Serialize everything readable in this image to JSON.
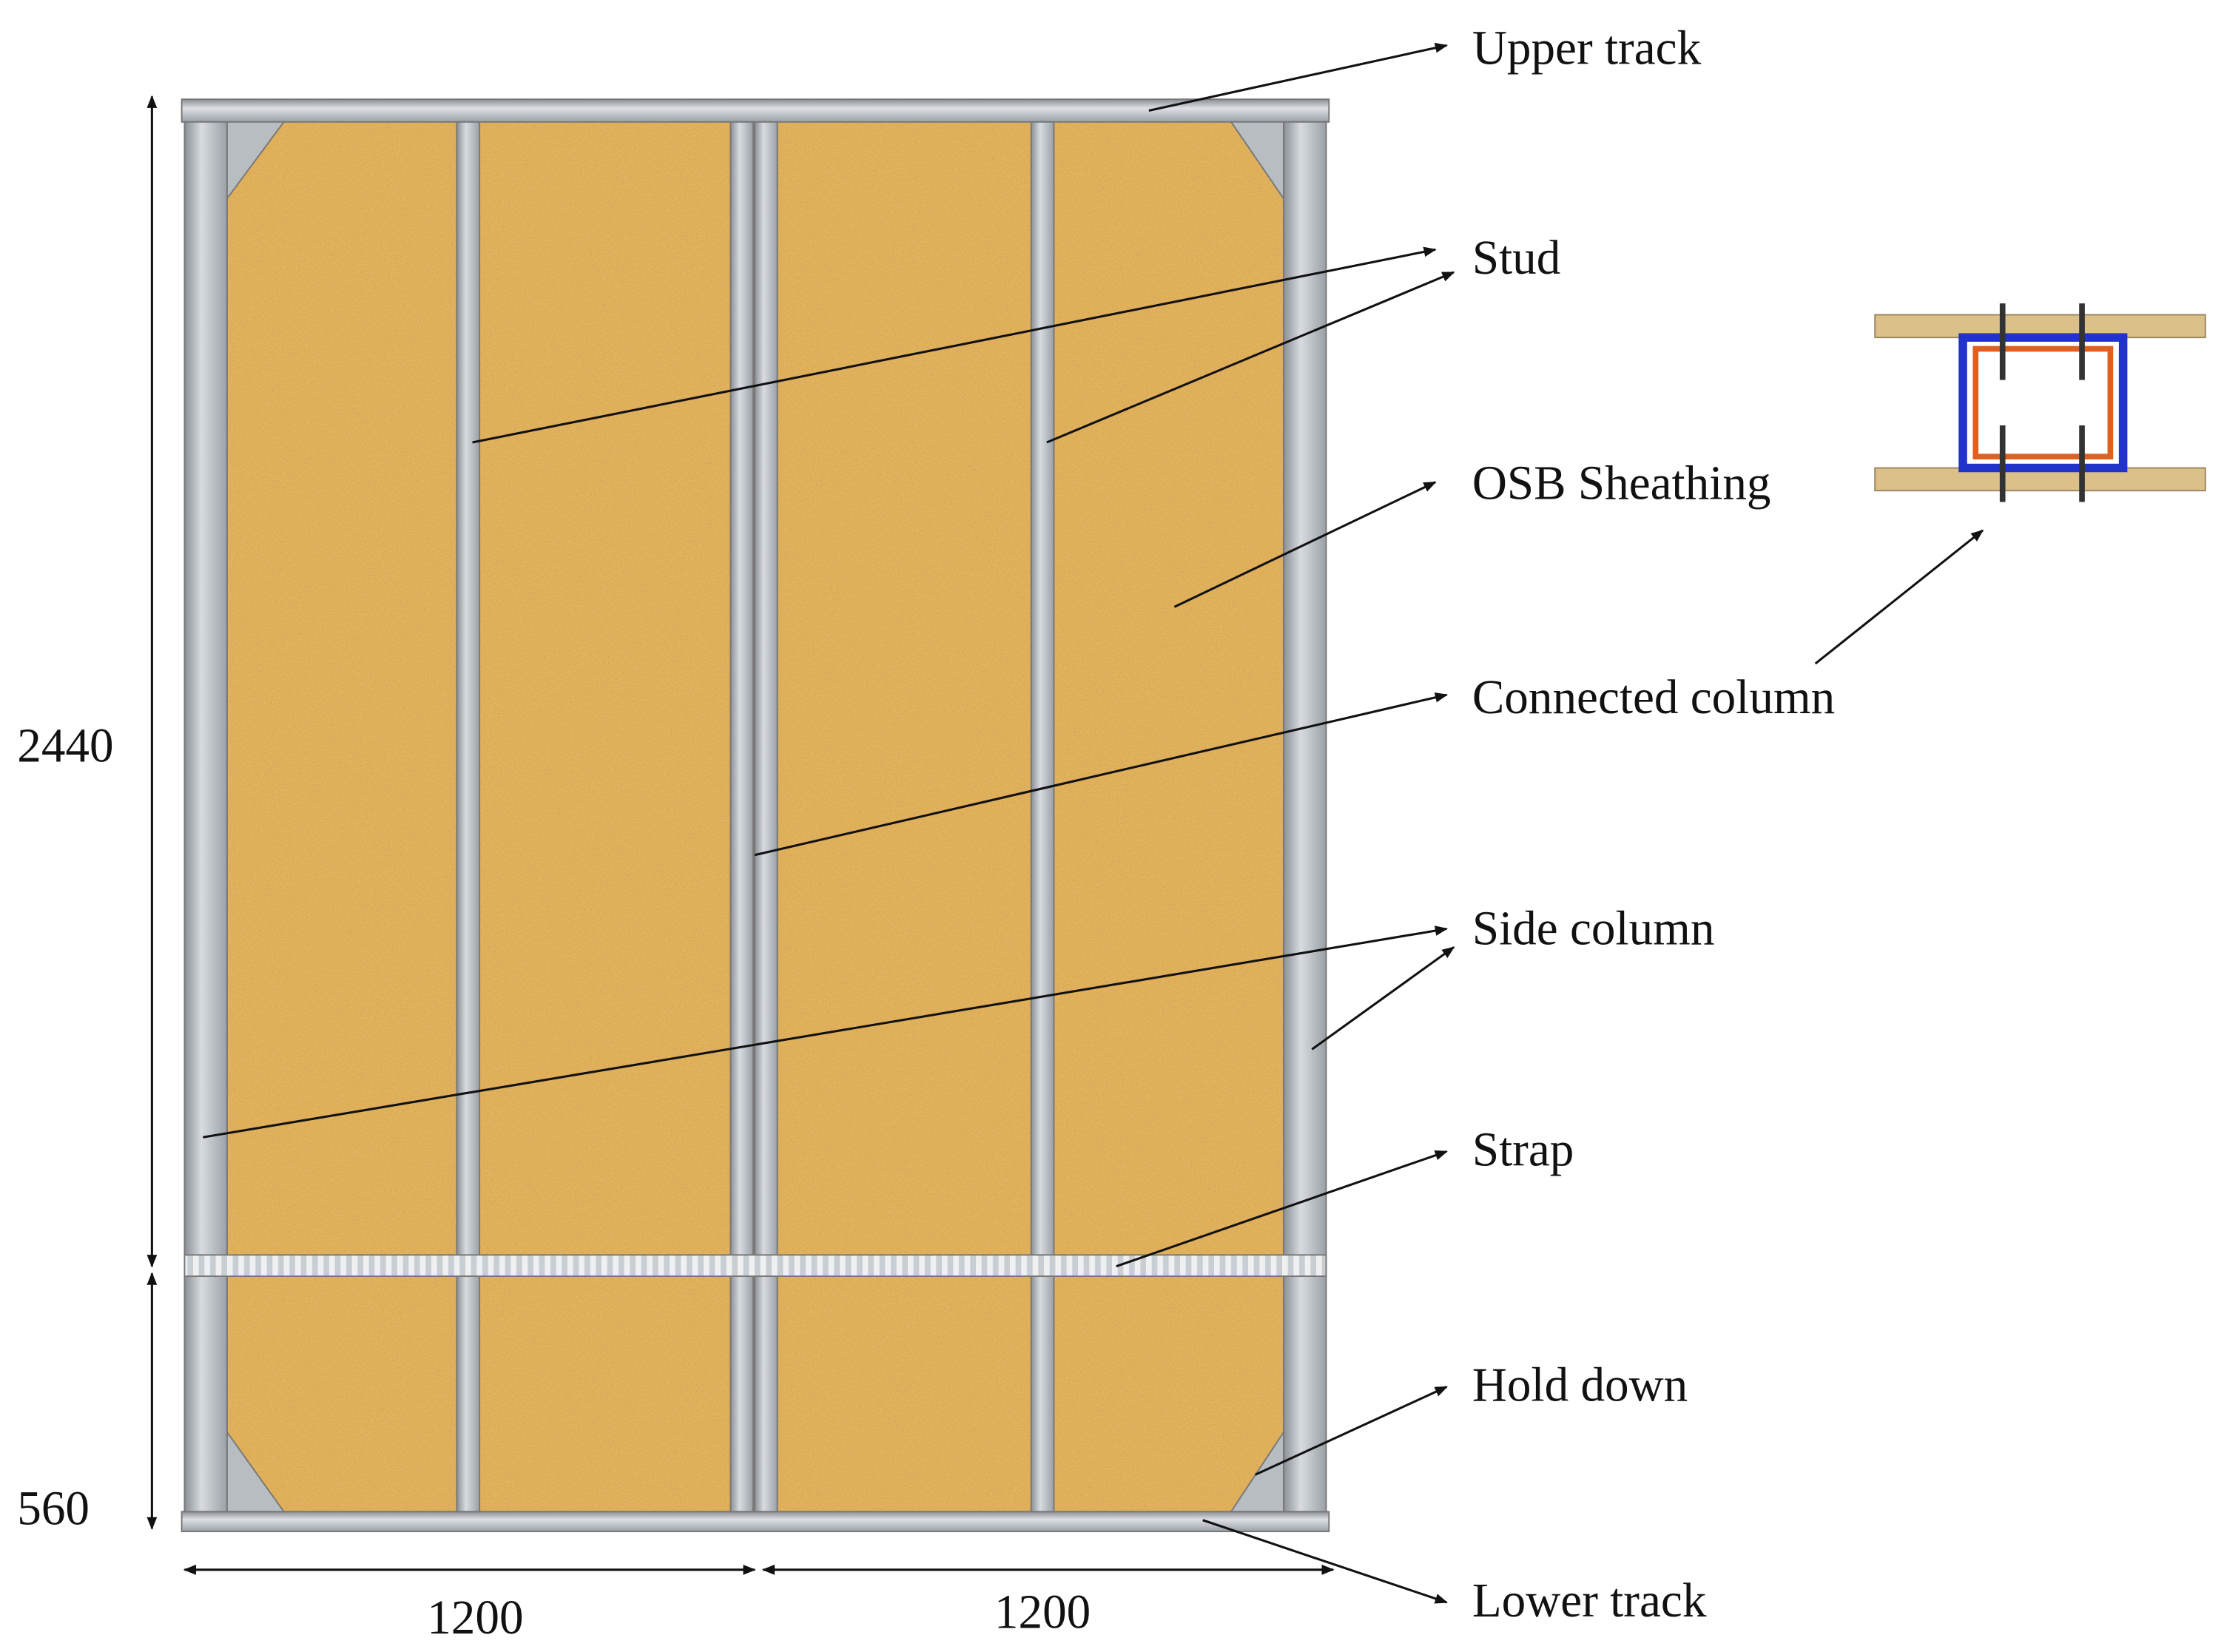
{
  "labels": {
    "upper_track": "Upper track",
    "stud": "Stud",
    "osb_sheathing": "OSB Sheathing",
    "connected_column": "Connected column",
    "side_column": "Side column",
    "strap": "Strap",
    "hold_down": "Hold down",
    "lower_track": "Lower track"
  },
  "dimensions": {
    "height_upper": "2440",
    "height_lower": "560",
    "width_left": "1200",
    "width_right": "1200"
  }
}
